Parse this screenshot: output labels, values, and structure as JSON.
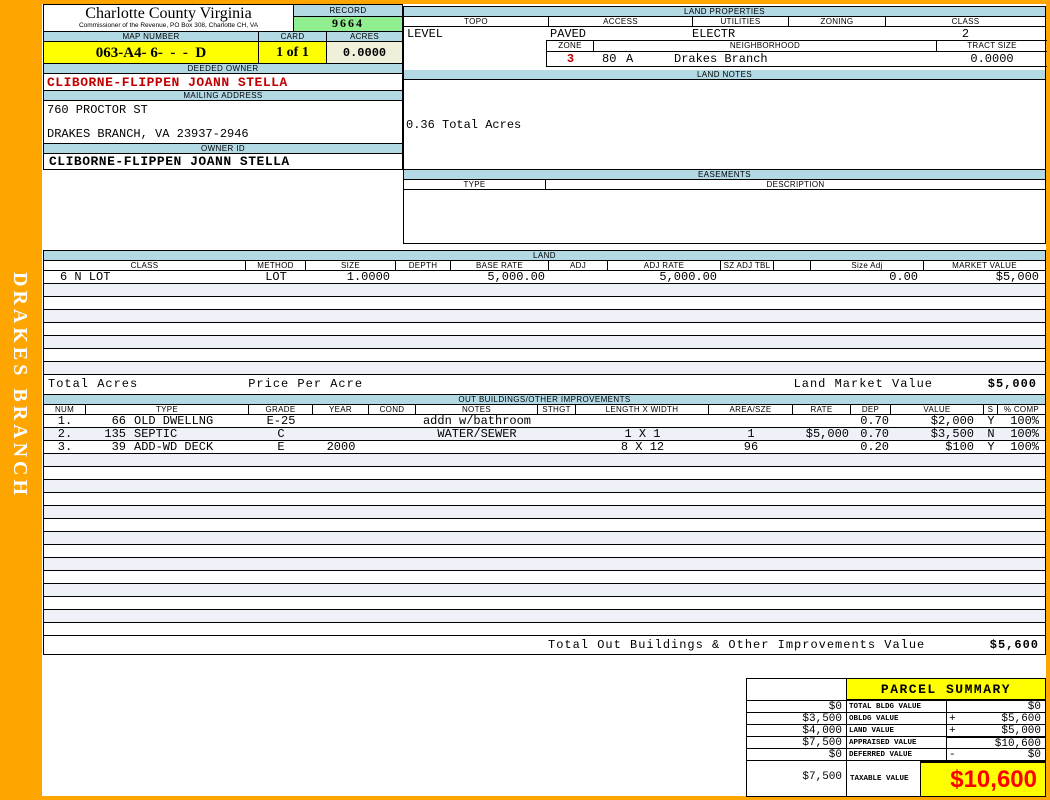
{
  "frame": {
    "sidebar_text": "DRAKES BRANCH"
  },
  "header": {
    "county_title": "Charlotte County Virginia",
    "county_subtitle": "Commissioner of the Revenue, PO Box 308, Charlotte CH, VA",
    "record_label": "RECORD",
    "record_value": "9664",
    "map_number_label": "MAP NUMBER",
    "map_number_value": "063-A4- 6-  -  -  D",
    "card_label": "CARD",
    "card_value": "1 of 1",
    "acres_label": "ACRES",
    "acres_value": "0.0000"
  },
  "owner": {
    "deeded_owner_label": "DEEDED OWNER",
    "deeded_owner": "CLIBORNE-FLIPPEN JOANN STELLA",
    "mailing_address_label": "MAILING ADDRESS",
    "address_line1": "760 PROCTOR ST",
    "address_line2": "DRAKES BRANCH, VA 23937-2946",
    "owner_id_label": "OWNER ID",
    "owner_id": "CLIBORNE-FLIPPEN JOANN STELLA"
  },
  "land_properties": {
    "title": "LAND PROPERTIES",
    "columns": [
      "TOPO",
      "ACCESS",
      "UTILITIES",
      "ZONING",
      "CLASS"
    ],
    "topo": "LEVEL",
    "access": "PAVED",
    "utilities": "ELECTR",
    "zoning": "",
    "class": "2",
    "zone_label": "ZONE",
    "zone": "3",
    "zone_code": "80",
    "zone_letter": "A",
    "neighborhood_label": "NEIGHBORHOOD",
    "neighborhood": "Drakes Branch",
    "tract_size_label": "TRACT SIZE",
    "tract_size": "0.0000"
  },
  "land_notes": {
    "title": "LAND NOTES",
    "note": "0.36 Total Acres"
  },
  "easements": {
    "title": "EASEMENTS",
    "type_label": "TYPE",
    "description_label": "DESCRIPTION"
  },
  "land": {
    "title": "LAND",
    "columns": [
      "CLASS",
      "METHOD",
      "SIZE",
      "DEPTH",
      "BASE RATE",
      "ADJ",
      "ADJ RATE",
      "SZ ADJ TBL",
      "",
      "Size Adj",
      "MARKET VALUE"
    ],
    "rows": [
      {
        "class": "6 N LOT",
        "method": "LOT",
        "size": "1.0000",
        "depth": "",
        "base_rate": "5,000.00",
        "adj": "",
        "adj_rate": "5,000.00",
        "sz_adj_tbl": "",
        "blank": "",
        "size_adj": "0.00",
        "market_value": "$5,000"
      }
    ],
    "empty_row_count": 7,
    "total_acres_label": "Total Acres",
    "price_per_acre_label": "Price Per Acre",
    "land_market_value_label": "Land Market Value",
    "land_market_value": "$5,000"
  },
  "out_buildings": {
    "title": "OUT BUILDINGS/OTHER IMPROVEMENTS",
    "columns": [
      "NUM",
      "TYPE",
      "GRADE",
      "YEAR",
      "COND",
      "NOTES",
      "STHGT",
      "LENGTH X WIDTH",
      "AREA/SZE",
      "RATE",
      "DEP",
      "VALUE",
      "S",
      "% COMP"
    ],
    "rows": [
      {
        "num": "1.",
        "type_code": "66",
        "type_name": "OLD DWELLNG",
        "grade": "E-25",
        "year": "",
        "cond": "",
        "notes": "addn w/bathroom",
        "sthgt": "",
        "length_width": "",
        "area": "",
        "rate": "",
        "dep": "0.70",
        "value": "$2,000",
        "s": "Y",
        "comp": "100%"
      },
      {
        "num": "2.",
        "type_code": "135",
        "type_name": "SEPTIC",
        "grade": "C",
        "year": "",
        "cond": "",
        "notes": "WATER/SEWER",
        "sthgt": "",
        "length_width": "1 X 1",
        "area": "1",
        "rate": "$5,000",
        "dep": "0.70",
        "value": "$3,500",
        "s": "N",
        "comp": "100%"
      },
      {
        "num": "3.",
        "type_code": "39",
        "type_name": "ADD-WD DECK",
        "grade": "E",
        "year": "2000",
        "cond": "",
        "notes": "",
        "sthgt": "",
        "length_width": "8 X 12",
        "area": "96",
        "rate": "",
        "dep": "0.20",
        "value": "$100",
        "s": "Y",
        "comp": "100%"
      }
    ],
    "empty_row_count": 14,
    "total_label": "Total Out Buildings & Other Improvements Value",
    "total_value": "$5,600"
  },
  "parcel_summary": {
    "title": "PARCEL SUMMARY",
    "rows": [
      {
        "left": "$0",
        "label": "TOTAL BLDG VALUE",
        "op": "",
        "right": "$0"
      },
      {
        "left": "$3,500",
        "label": "OBLDG VALUE",
        "op": "+",
        "right": "$5,600"
      },
      {
        "left": "$4,000",
        "label": "LAND VALUE",
        "op": "+",
        "right": "$5,000"
      },
      {
        "left": "$7,500",
        "label": "APPRAISED VALUE",
        "op": "",
        "right": "$10,600"
      },
      {
        "left": "$0",
        "label": "DEFERRED VALUE",
        "op": "-",
        "right": "$0"
      }
    ],
    "taxable": {
      "left": "$7,500",
      "label": "TAXABLE VALUE",
      "value": "$10,600"
    }
  },
  "colors": {
    "frame_orange": "#FFA500",
    "section_bar_blue": "#B3D9E5",
    "record_green": "#90EE90",
    "highlight_yellow": "#FFFF00",
    "acres_cream": "#EFEFDA",
    "owner_red": "#C00000",
    "taxable_red": "#FF0000",
    "row_tint": "#EEF2F8"
  }
}
